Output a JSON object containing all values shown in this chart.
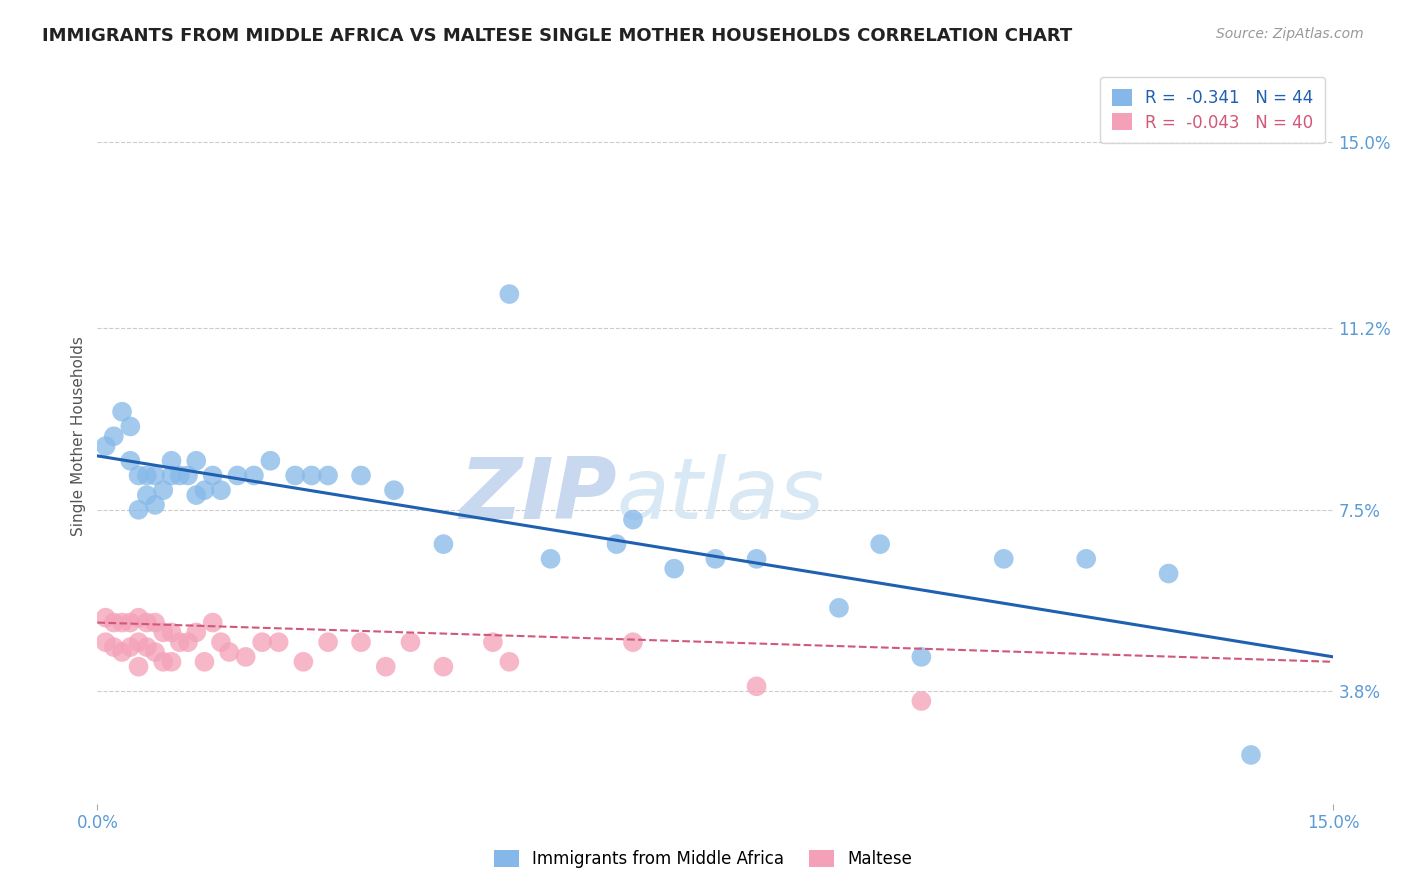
{
  "title": "IMMIGRANTS FROM MIDDLE AFRICA VS MALTESE SINGLE MOTHER HOUSEHOLDS CORRELATION CHART",
  "source": "Source: ZipAtlas.com",
  "ylabel": "Single Mother Households",
  "xlim": [
    0.0,
    0.15
  ],
  "ylim": [
    0.015,
    0.165
  ],
  "ytick_positions": [
    0.038,
    0.075,
    0.112,
    0.15
  ],
  "ytick_labels": [
    "3.8%",
    "7.5%",
    "11.2%",
    "15.0%"
  ],
  "grid_color": "#cccccc",
  "background_color": "#ffffff",
  "blue_color": "#85b8e8",
  "pink_color": "#f4a0b8",
  "blue_line_color": "#2060b0",
  "pink_line_color": "#d05878",
  "blue_label": "Immigrants from Middle Africa",
  "pink_label": "Maltese",
  "blue_R": -0.341,
  "blue_N": 44,
  "pink_R": -0.043,
  "pink_N": 40,
  "blue_x": [
    0.001,
    0.002,
    0.003,
    0.004,
    0.004,
    0.005,
    0.005,
    0.006,
    0.006,
    0.007,
    0.007,
    0.008,
    0.009,
    0.009,
    0.01,
    0.011,
    0.012,
    0.012,
    0.013,
    0.014,
    0.015,
    0.017,
    0.019,
    0.021,
    0.024,
    0.026,
    0.028,
    0.032,
    0.036,
    0.042,
    0.05,
    0.055,
    0.063,
    0.065,
    0.07,
    0.075,
    0.08,
    0.09,
    0.095,
    0.1,
    0.11,
    0.12,
    0.13,
    0.14
  ],
  "blue_y": [
    0.088,
    0.09,
    0.095,
    0.092,
    0.085,
    0.082,
    0.075,
    0.082,
    0.078,
    0.082,
    0.076,
    0.079,
    0.082,
    0.085,
    0.082,
    0.082,
    0.085,
    0.078,
    0.079,
    0.082,
    0.079,
    0.082,
    0.082,
    0.085,
    0.082,
    0.082,
    0.082,
    0.082,
    0.079,
    0.068,
    0.119,
    0.065,
    0.068,
    0.073,
    0.063,
    0.065,
    0.065,
    0.055,
    0.068,
    0.045,
    0.065,
    0.065,
    0.062,
    0.025
  ],
  "pink_x": [
    0.001,
    0.001,
    0.002,
    0.002,
    0.003,
    0.003,
    0.004,
    0.004,
    0.005,
    0.005,
    0.005,
    0.006,
    0.006,
    0.007,
    0.007,
    0.008,
    0.008,
    0.009,
    0.009,
    0.01,
    0.011,
    0.012,
    0.013,
    0.014,
    0.015,
    0.016,
    0.018,
    0.02,
    0.022,
    0.025,
    0.028,
    0.032,
    0.035,
    0.038,
    0.042,
    0.048,
    0.05,
    0.065,
    0.08,
    0.1
  ],
  "pink_y": [
    0.053,
    0.048,
    0.052,
    0.047,
    0.052,
    0.046,
    0.052,
    0.047,
    0.053,
    0.048,
    0.043,
    0.052,
    0.047,
    0.052,
    0.046,
    0.05,
    0.044,
    0.05,
    0.044,
    0.048,
    0.048,
    0.05,
    0.044,
    0.052,
    0.048,
    0.046,
    0.045,
    0.048,
    0.048,
    0.044,
    0.048,
    0.048,
    0.043,
    0.048,
    0.043,
    0.048,
    0.044,
    0.048,
    0.039,
    0.036
  ],
  "watermark_text": "ZIP",
  "watermark_text2": "atlas",
  "watermark_color": "#c8d8ee"
}
